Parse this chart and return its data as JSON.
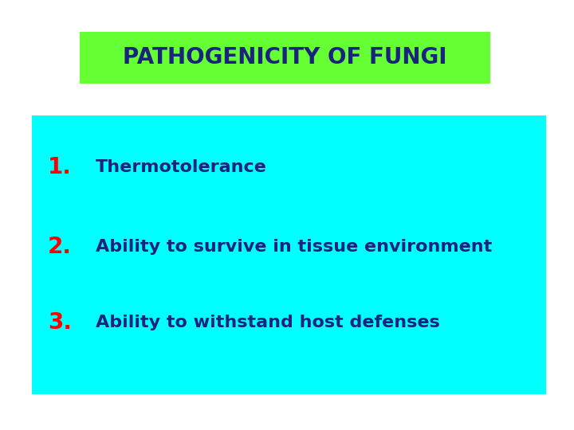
{
  "title": "PATHOGENICITY OF FUNGI",
  "title_bg_color": "#66FF33",
  "title_text_color": "#1a237e",
  "title_fontsize": 20,
  "bg_color": "#ffffff",
  "box_color": "#00FFFF",
  "items": [
    {
      "number": "1.",
      "text": "Thermotolerance"
    },
    {
      "number": "2.",
      "text": "Ability to survive in tissue environment"
    },
    {
      "number": "3.",
      "text": "Ability to withstand host defenses"
    }
  ],
  "number_color": "#FF0000",
  "text_color": "#1a237e",
  "item_fontsize": 16,
  "number_fontsize": 20,
  "figsize": [
    7.2,
    5.4
  ],
  "dpi": 100
}
